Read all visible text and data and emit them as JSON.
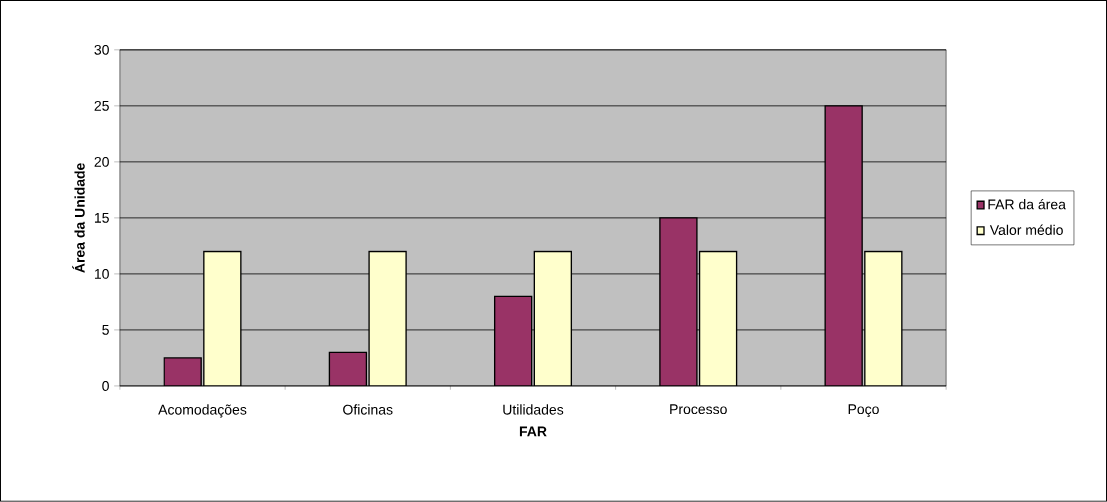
{
  "chart_data": {
    "type": "bar",
    "xlabel": "FAR",
    "ylabel": "Área da Unidade",
    "categories": [
      "Acomodações",
      "Oficinas",
      "Utilidades",
      "Processo",
      "Poço"
    ],
    "series": [
      {
        "name": "FAR da área",
        "color": "#993366",
        "values": [
          2.5,
          3,
          8,
          15,
          25
        ]
      },
      {
        "name": "Valor médio",
        "color": "#ffffcc",
        "values": [
          12,
          12,
          12,
          12,
          12
        ]
      }
    ],
    "ylim": [
      0,
      30
    ],
    "yticks": [
      0,
      5,
      10,
      15,
      20,
      25,
      30
    ],
    "grid": "y",
    "legend": "right"
  }
}
